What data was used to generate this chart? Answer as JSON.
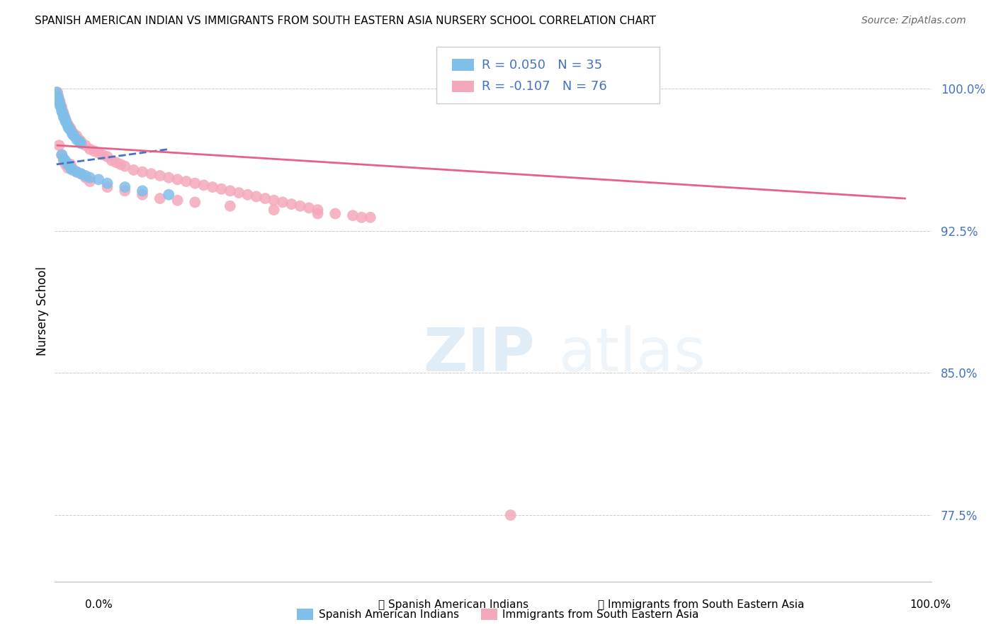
{
  "title": "SPANISH AMERICAN INDIAN VS IMMIGRANTS FROM SOUTH EASTERN ASIA NURSERY SCHOOL CORRELATION CHART",
  "source": "Source: ZipAtlas.com",
  "ylabel": "Nursery School",
  "legend_label_blue": "Spanish American Indians",
  "legend_label_pink": "Immigrants from South Eastern Asia",
  "R_blue": 0.05,
  "N_blue": 35,
  "R_pink": -0.107,
  "N_pink": 76,
  "color_blue": "#7fbfea",
  "color_pink": "#f4a8bb",
  "trendline_blue": "#4472c4",
  "trendline_pink": "#e8608a",
  "ytick_labels": [
    "77.5%",
    "85.0%",
    "92.5%",
    "100.0%"
  ],
  "ytick_values": [
    0.775,
    0.85,
    0.925,
    1.0
  ],
  "ytick_color": "#4472c4",
  "watermark_zip": "ZIP",
  "watermark_atlas": "atlas",
  "bg_color": "#ffffff",
  "grid_color": "#cccccc",
  "blue_x": [
    0.002,
    0.003,
    0.004,
    0.005,
    0.006,
    0.007,
    0.008,
    0.009,
    0.01,
    0.011,
    0.012,
    0.013,
    0.015,
    0.016,
    0.018,
    0.02,
    0.022,
    0.025,
    0.028,
    0.03,
    0.008,
    0.01,
    0.012,
    0.015,
    0.018,
    0.02,
    0.025,
    0.03,
    0.035,
    0.04,
    0.05,
    0.06,
    0.08,
    0.1,
    0.13
  ],
  "blue_y": [
    0.998,
    0.996,
    0.995,
    0.993,
    0.991,
    0.99,
    0.988,
    0.987,
    0.985,
    0.985,
    0.983,
    0.982,
    0.98,
    0.979,
    0.978,
    0.976,
    0.975,
    0.973,
    0.972,
    0.971,
    0.965,
    0.963,
    0.962,
    0.96,
    0.958,
    0.957,
    0.956,
    0.955,
    0.954,
    0.953,
    0.952,
    0.95,
    0.948,
    0.946,
    0.944
  ],
  "pink_x": [
    0.003,
    0.004,
    0.005,
    0.006,
    0.007,
    0.008,
    0.009,
    0.01,
    0.011,
    0.012,
    0.013,
    0.015,
    0.016,
    0.018,
    0.02,
    0.022,
    0.025,
    0.028,
    0.03,
    0.035,
    0.04,
    0.045,
    0.05,
    0.055,
    0.06,
    0.065,
    0.07,
    0.075,
    0.08,
    0.09,
    0.1,
    0.11,
    0.12,
    0.13,
    0.14,
    0.15,
    0.16,
    0.17,
    0.18,
    0.19,
    0.2,
    0.21,
    0.22,
    0.23,
    0.24,
    0.25,
    0.26,
    0.27,
    0.28,
    0.29,
    0.3,
    0.32,
    0.34,
    0.36,
    0.005,
    0.008,
    0.01,
    0.012,
    0.015,
    0.018,
    0.02,
    0.025,
    0.03,
    0.035,
    0.04,
    0.06,
    0.08,
    0.1,
    0.12,
    0.14,
    0.16,
    0.2,
    0.25,
    0.3,
    0.35,
    0.52
  ],
  "pink_y": [
    0.998,
    0.996,
    0.994,
    0.993,
    0.991,
    0.99,
    0.988,
    0.987,
    0.985,
    0.984,
    0.983,
    0.981,
    0.98,
    0.979,
    0.977,
    0.976,
    0.975,
    0.973,
    0.972,
    0.97,
    0.968,
    0.967,
    0.966,
    0.965,
    0.964,
    0.962,
    0.961,
    0.96,
    0.959,
    0.957,
    0.956,
    0.955,
    0.954,
    0.953,
    0.952,
    0.951,
    0.95,
    0.949,
    0.948,
    0.947,
    0.946,
    0.945,
    0.944,
    0.943,
    0.942,
    0.941,
    0.94,
    0.939,
    0.938,
    0.937,
    0.936,
    0.934,
    0.933,
    0.932,
    0.97,
    0.965,
    0.962,
    0.96,
    0.958,
    0.96,
    0.958,
    0.956,
    0.955,
    0.953,
    0.951,
    0.948,
    0.946,
    0.944,
    0.942,
    0.941,
    0.94,
    0.938,
    0.936,
    0.934,
    0.932,
    0.775
  ]
}
